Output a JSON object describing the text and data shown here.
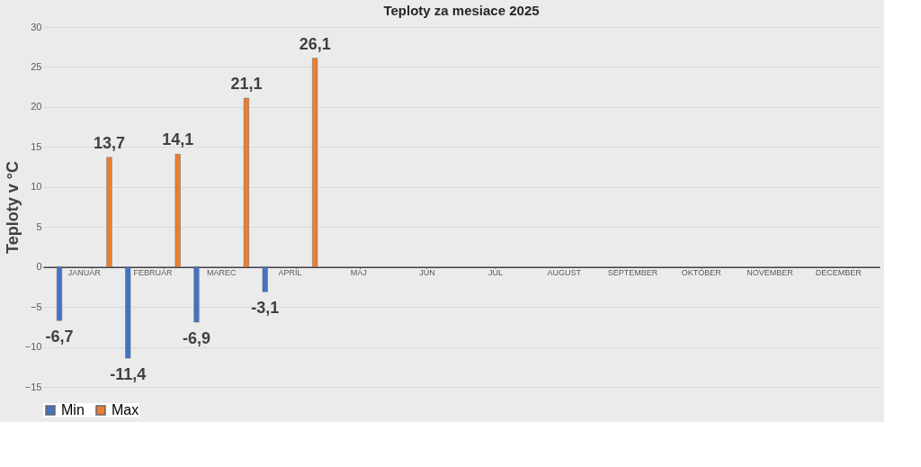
{
  "chart_data": {
    "type": "bar",
    "title": "Teploty za mesiace 2025",
    "ylabel": "Teploty v °C",
    "categories": [
      "JANUÁR",
      "FEBRUÁR",
      "MAREC",
      "APRÍL",
      "MÁJ",
      "JÚN",
      "JÚL",
      "AUGUST",
      "SEPTEMBER",
      "OKTÓBER",
      "NOVEMBER",
      "DECEMBER"
    ],
    "series": [
      {
        "name": "Min",
        "color": "#4472c4",
        "values": [
          -6.7,
          -11.4,
          -6.9,
          -3.1,
          null,
          null,
          null,
          null,
          null,
          null,
          null,
          null
        ],
        "value_labels": [
          "-6,7",
          "-11,4",
          "-6,9",
          "-3,1",
          null,
          null,
          null,
          null,
          null,
          null,
          null,
          null
        ]
      },
      {
        "name": "Max",
        "color": "#ed7d31",
        "values": [
          13.7,
          14.1,
          21.1,
          26.1,
          null,
          null,
          null,
          null,
          null,
          null,
          null,
          null
        ],
        "value_labels": [
          "13,7",
          "14,1",
          "21,1",
          "26,1",
          null,
          null,
          null,
          null,
          null,
          null,
          null,
          null
        ]
      }
    ],
    "ylim": [
      -15,
      30
    ],
    "yticks": [
      -15,
      -10,
      -5,
      0,
      5,
      10,
      15,
      20,
      25,
      30
    ],
    "grid": "y",
    "legend": "bottom"
  }
}
